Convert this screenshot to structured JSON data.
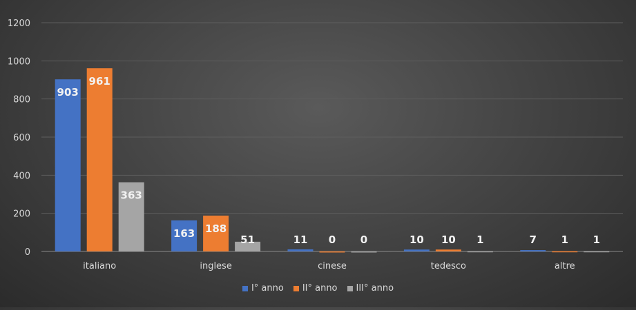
{
  "chart_data": {
    "type": "bar",
    "categories": [
      "italiano",
      "inglese",
      "cinese",
      "tedesco",
      "altre"
    ],
    "series": [
      {
        "name": "I° anno",
        "values": [
          903,
          163,
          11,
          10,
          7
        ],
        "color": "#4472c4"
      },
      {
        "name": "II° anno",
        "values": [
          961,
          188,
          0,
          10,
          1
        ],
        "color": "#ed7d31"
      },
      {
        "name": "III° anno",
        "values": [
          363,
          51,
          0,
          1,
          1
        ],
        "color": "#a5a5a5"
      }
    ],
    "y_ticks": [
      "0",
      "200",
      "400",
      "600",
      "800",
      "1000",
      "1200"
    ],
    "ylim": [
      0,
      1200
    ],
    "grid": true,
    "legend_position": "bottom",
    "data_labels": true
  }
}
